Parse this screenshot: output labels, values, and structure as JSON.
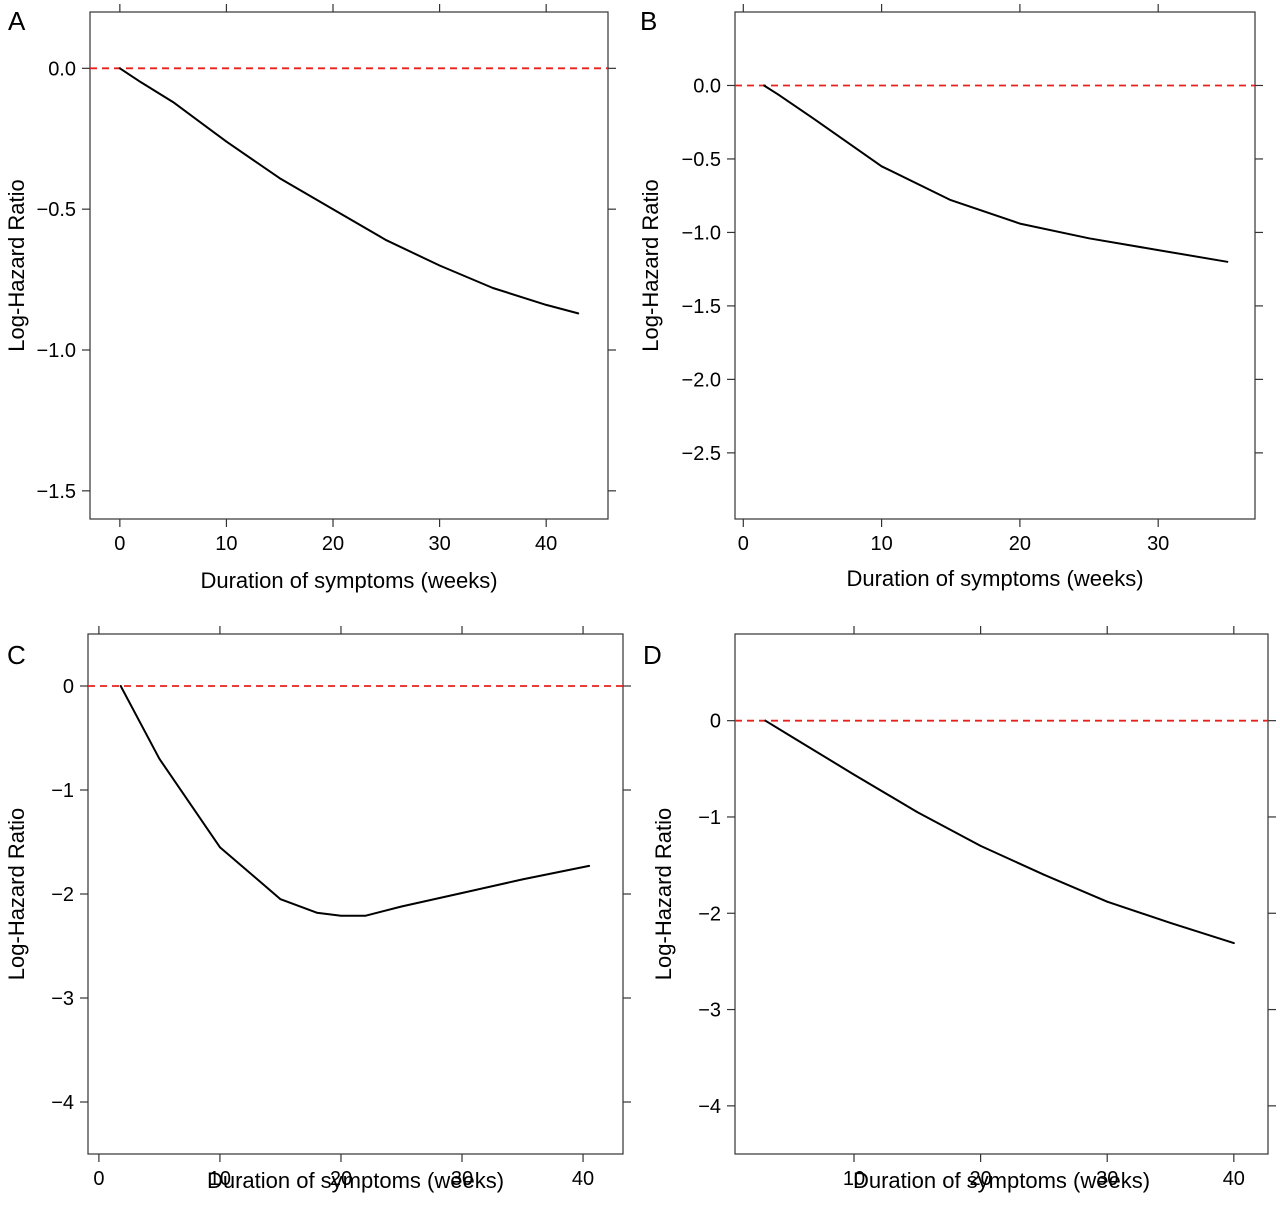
{
  "colors": {
    "curve": "#000000",
    "reference_line": "#e8211d",
    "frame": "#333333"
  },
  "chart_data": [
    {
      "panel_label": "A",
      "type": "line",
      "xlabel": "Duration of symptoms (weeks)",
      "ylabel": "Log-Hazard Ratio",
      "xlim": [
        -2.8,
        45.8
      ],
      "ylim": [
        -1.6,
        0.2
      ],
      "xticks": [
        0,
        10,
        20,
        30,
        40
      ],
      "xtick_labels": [
        "0",
        "10",
        "20",
        "30",
        "40"
      ],
      "yticks": [
        0,
        -0.5,
        -1.0,
        -1.5
      ],
      "ytick_labels": [
        "0.0",
        "−0.5",
        "−1.0",
        "−1.5"
      ],
      "reference_line": {
        "y": 0,
        "style": "dashed"
      },
      "series": [
        {
          "x": [
            0,
            2,
            5,
            10,
            15,
            20,
            25,
            30,
            35,
            40,
            43
          ],
          "y": [
            0,
            -0.05,
            -0.12,
            -0.26,
            -0.39,
            -0.5,
            -0.61,
            -0.7,
            -0.78,
            -0.84,
            -0.87
          ]
        }
      ]
    },
    {
      "panel_label": "B",
      "type": "line",
      "xlabel": "Duration of symptoms (weeks)",
      "ylabel": "Log-Hazard Ratio",
      "xlim": [
        -0.6,
        37.0
      ],
      "ylim": [
        -2.95,
        0.5
      ],
      "xticks": [
        0,
        10,
        20,
        30
      ],
      "xtick_labels": [
        "0",
        "10",
        "20",
        "30"
      ],
      "yticks": [
        0,
        -0.5,
        -1.0,
        -1.5,
        -2.0,
        -2.5
      ],
      "ytick_labels": [
        "0.0",
        "−0.5",
        "−1.0",
        "−1.5",
        "−2.0",
        "−2.5"
      ],
      "reference_line": {
        "y": 0,
        "style": "dashed"
      },
      "series": [
        {
          "x": [
            1.5,
            2.5,
            5,
            10,
            15,
            20,
            25,
            30,
            35
          ],
          "y": [
            0,
            -0.06,
            -0.22,
            -0.55,
            -0.78,
            -0.94,
            -1.04,
            -1.12,
            -1.2
          ]
        }
      ]
    },
    {
      "panel_label": "C",
      "type": "line",
      "xlabel": "Duration of symptoms (weeks)",
      "ylabel": "Log-Hazard Ratio",
      "xlim": [
        -0.9,
        43.3
      ],
      "ylim": [
        -4.5,
        0.5
      ],
      "xticks": [
        0,
        10,
        20,
        30,
        40
      ],
      "xtick_labels": [
        "0",
        "10",
        "20",
        "30",
        "40"
      ],
      "yticks": [
        0,
        -1,
        -2,
        -3,
        -4
      ],
      "ytick_labels": [
        "0",
        "−1",
        "−2",
        "−3",
        "−4"
      ],
      "reference_line": {
        "y": 0,
        "style": "dashed"
      },
      "series": [
        {
          "x": [
            1.8,
            5,
            10,
            15,
            18,
            20,
            22,
            25,
            30,
            35,
            40.5
          ],
          "y": [
            0,
            -0.7,
            -1.55,
            -2.05,
            -2.18,
            -2.21,
            -2.21,
            -2.12,
            -1.99,
            -1.86,
            -1.73
          ]
        }
      ]
    },
    {
      "panel_label": "D",
      "type": "line",
      "xlabel": "Duration of symptoms (weeks)",
      "ylabel": "Log-Hazard Ratio",
      "xlim": [
        0.6,
        42.7
      ],
      "ylim": [
        -4.5,
        0.9
      ],
      "xticks": [
        10,
        20,
        30,
        40
      ],
      "xtick_labels": [
        "10",
        "20",
        "30",
        "40"
      ],
      "yticks": [
        0,
        -1,
        -2,
        -3,
        -4
      ],
      "ytick_labels": [
        "0",
        "−1",
        "−2",
        "−3",
        "−4"
      ],
      "reference_line": {
        "y": 0,
        "style": "dashed"
      },
      "series": [
        {
          "x": [
            3,
            5,
            10,
            15,
            20,
            25,
            30,
            35,
            40
          ],
          "y": [
            0,
            -0.16,
            -0.56,
            -0.95,
            -1.3,
            -1.6,
            -1.88,
            -2.1,
            -2.31
          ]
        }
      ]
    }
  ]
}
